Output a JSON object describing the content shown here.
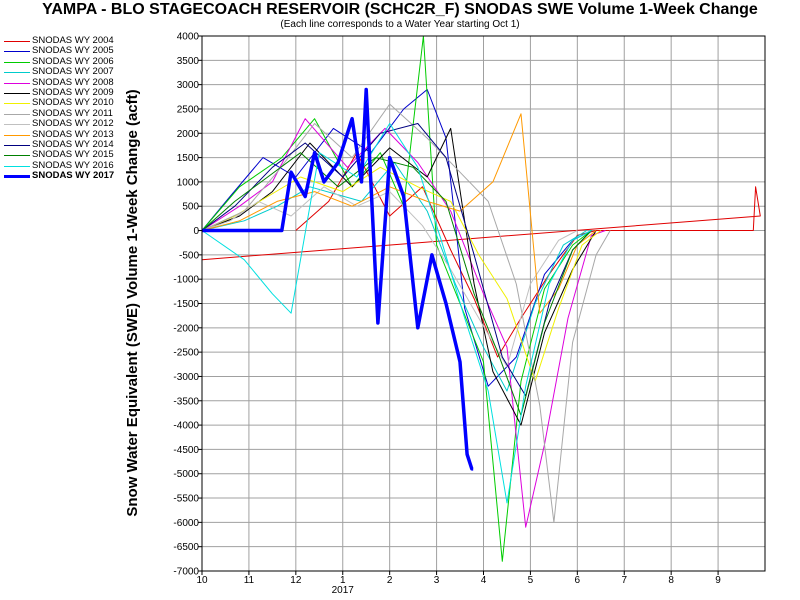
{
  "chart_data": {
    "type": "line",
    "title": "YAMPA - BLO STAGECOACH RESERVOIR (SCHC2R_F) SNODAS SWE Volume 1-Week Change",
    "subtitle": "(Each line corresponds to a Water Year starting Oct 1)",
    "ylabel": "Snow Water Equivalent (SWE) Volume 1-Week Change (acft)",
    "xlabel": "",
    "x_ticks": [
      "10",
      "11",
      "12",
      "1",
      "2",
      "3",
      "4",
      "5",
      "6",
      "7",
      "8",
      "9"
    ],
    "x_year_label": "2017",
    "ylim": [
      -7000,
      4000
    ],
    "y_ticks": [
      4000,
      3500,
      3000,
      2500,
      2000,
      1500,
      1000,
      500,
      0,
      -500,
      -1000,
      -1500,
      -2000,
      -2500,
      -3000,
      -3500,
      -4000,
      -4500,
      -5000,
      -5500,
      -6000,
      -6500,
      -7000
    ],
    "grid": true,
    "legend_placement": "top-left outside",
    "series": [
      {
        "name": "SNODAS WY 2004",
        "color": "#e00000",
        "values": [
          [
            12.0,
            0
          ],
          [
            12.7,
            600
          ],
          [
            1.3,
            1600
          ],
          [
            2.0,
            300
          ],
          [
            2.7,
            900
          ],
          [
            3.3,
            -400
          ],
          [
            3.8,
            -1400
          ],
          [
            4.3,
            -2600
          ],
          [
            4.8,
            -1800
          ],
          [
            5.4,
            -900
          ],
          [
            6.0,
            -100
          ],
          [
            6.4,
            0
          ],
          [
            9.75,
            0
          ],
          [
            9.8,
            900
          ],
          [
            9.9,
            300
          ],
          [
            10.0,
            -600
          ]
        ]
      },
      {
        "name": "SNODAS WY 2005",
        "color": "#0000cc",
        "values": [
          [
            10.0,
            0
          ],
          [
            10.6,
            700
          ],
          [
            11.3,
            1500
          ],
          [
            12.0,
            1100
          ],
          [
            12.8,
            2100
          ],
          [
            1.6,
            1600
          ],
          [
            2.3,
            2500
          ],
          [
            2.8,
            2900
          ],
          [
            3.2,
            1900
          ],
          [
            3.6,
            -1600
          ],
          [
            4.1,
            -3200
          ],
          [
            4.7,
            -2600
          ],
          [
            5.3,
            -900
          ],
          [
            5.9,
            -200
          ],
          [
            6.3,
            0
          ]
        ]
      },
      {
        "name": "SNODAS WY 2006",
        "color": "#00cc00",
        "values": [
          [
            10.0,
            0
          ],
          [
            10.8,
            900
          ],
          [
            11.7,
            1500
          ],
          [
            12.4,
            2300
          ],
          [
            1.2,
            900
          ],
          [
            1.8,
            1600
          ],
          [
            2.3,
            500
          ],
          [
            2.72,
            4000
          ],
          [
            3.0,
            -300
          ],
          [
            3.5,
            -1500
          ],
          [
            4.0,
            -2700
          ],
          [
            4.4,
            -6800
          ],
          [
            4.8,
            -3100
          ],
          [
            5.3,
            -1200
          ],
          [
            5.9,
            -300
          ],
          [
            6.3,
            0
          ]
        ]
      },
      {
        "name": "SNODAS WY 2007",
        "color": "#00cccc",
        "values": [
          [
            10.0,
            0
          ],
          [
            10.9,
            200
          ],
          [
            11.6,
            500
          ],
          [
            12.3,
            900
          ],
          [
            1.4,
            600
          ],
          [
            2.1,
            1400
          ],
          [
            2.8,
            400
          ],
          [
            3.4,
            -1100
          ],
          [
            4.0,
            -2400
          ],
          [
            4.5,
            -3300
          ],
          [
            5.1,
            -1500
          ],
          [
            5.7,
            -300
          ],
          [
            6.2,
            0
          ]
        ]
      },
      {
        "name": "SNODAS WY 2008",
        "color": "#dd00dd",
        "values": [
          [
            10.0,
            0
          ],
          [
            10.8,
            500
          ],
          [
            11.5,
            1000
          ],
          [
            12.2,
            2300
          ],
          [
            1.1,
            1300
          ],
          [
            1.9,
            2100
          ],
          [
            2.6,
            1400
          ],
          [
            3.3,
            400
          ],
          [
            4.0,
            -1300
          ],
          [
            4.5,
            -2400
          ],
          [
            4.9,
            -6100
          ],
          [
            5.3,
            -4400
          ],
          [
            5.8,
            -1800
          ],
          [
            6.3,
            -100
          ],
          [
            6.6,
            0
          ]
        ]
      },
      {
        "name": "SNODAS WY 2009",
        "color": "#000000",
        "values": [
          [
            10.0,
            0
          ],
          [
            10.8,
            300
          ],
          [
            11.5,
            800
          ],
          [
            12.3,
            1800
          ],
          [
            1.2,
            900
          ],
          [
            2.0,
            1700
          ],
          [
            2.8,
            1100
          ],
          [
            3.3,
            2100
          ],
          [
            3.8,
            -1100
          ],
          [
            4.2,
            -2900
          ],
          [
            4.8,
            -4000
          ],
          [
            5.3,
            -2100
          ],
          [
            5.9,
            -800
          ],
          [
            6.4,
            0
          ]
        ]
      },
      {
        "name": "SNODAS WY 2010",
        "color": "#f0f000",
        "values": [
          [
            10.0,
            0
          ],
          [
            10.7,
            300
          ],
          [
            11.4,
            700
          ],
          [
            12.1,
            1100
          ],
          [
            1.0,
            800
          ],
          [
            1.8,
            1300
          ],
          [
            2.6,
            900
          ],
          [
            3.3,
            600
          ],
          [
            3.9,
            -500
          ],
          [
            4.5,
            -1400
          ],
          [
            5.1,
            -3100
          ],
          [
            5.6,
            -1600
          ],
          [
            6.1,
            -300
          ],
          [
            6.5,
            0
          ]
        ]
      },
      {
        "name": "SNODAS WY 2011",
        "color": "#a8a8a8",
        "values": [
          [
            10.0,
            0
          ],
          [
            10.9,
            400
          ],
          [
            11.6,
            1200
          ],
          [
            12.4,
            2200
          ],
          [
            1.2,
            1500
          ],
          [
            2.0,
            2600
          ],
          [
            2.8,
            1900
          ],
          [
            3.5,
            1200
          ],
          [
            4.1,
            600
          ],
          [
            4.7,
            -1100
          ],
          [
            5.2,
            -3600
          ],
          [
            5.5,
            -6000
          ],
          [
            5.9,
            -2300
          ],
          [
            6.4,
            -500
          ],
          [
            6.7,
            0
          ]
        ]
      },
      {
        "name": "SNODAS WY 2012",
        "color": "#c0c0c0",
        "values": [
          [
            10.0,
            0
          ],
          [
            10.6,
            200
          ],
          [
            11.2,
            600
          ],
          [
            11.9,
            300
          ],
          [
            12.6,
            900
          ],
          [
            1.3,
            500
          ],
          [
            2.0,
            800
          ],
          [
            2.7,
            100
          ],
          [
            3.3,
            -800
          ],
          [
            3.9,
            -1800
          ],
          [
            4.5,
            -2800
          ],
          [
            5.0,
            -1100
          ],
          [
            5.6,
            -200
          ],
          [
            6.0,
            0
          ]
        ]
      },
      {
        "name": "SNODAS WY 2013",
        "color": "#ff9900",
        "values": [
          [
            10.0,
            0
          ],
          [
            10.8,
            200
          ],
          [
            11.6,
            600
          ],
          [
            12.4,
            800
          ],
          [
            1.2,
            500
          ],
          [
            2.0,
            900
          ],
          [
            2.8,
            600
          ],
          [
            3.5,
            400
          ],
          [
            4.2,
            1000
          ],
          [
            4.8,
            2400
          ],
          [
            5.2,
            -1700
          ],
          [
            5.6,
            -1200
          ],
          [
            6.0,
            -300
          ],
          [
            6.4,
            0
          ]
        ]
      },
      {
        "name": "SNODAS WY 2014",
        "color": "#000080",
        "values": [
          [
            10.0,
            0
          ],
          [
            10.7,
            500
          ],
          [
            11.5,
            1300
          ],
          [
            12.2,
            1800
          ],
          [
            1.0,
            1100
          ],
          [
            1.8,
            2000
          ],
          [
            2.6,
            2200
          ],
          [
            3.2,
            1500
          ],
          [
            3.8,
            -500
          ],
          [
            4.4,
            -2600
          ],
          [
            4.9,
            -3400
          ],
          [
            5.4,
            -1500
          ],
          [
            5.9,
            -400
          ],
          [
            6.3,
            0
          ]
        ]
      },
      {
        "name": "SNODAS WY 2015",
        "color": "#008000",
        "values": [
          [
            10.0,
            0
          ],
          [
            10.7,
            600
          ],
          [
            11.4,
            1100
          ],
          [
            12.1,
            1600
          ],
          [
            12.9,
            900
          ],
          [
            1.7,
            1500
          ],
          [
            2.5,
            1300
          ],
          [
            3.2,
            600
          ],
          [
            3.8,
            -1300
          ],
          [
            4.3,
            -2500
          ],
          [
            4.8,
            -3800
          ],
          [
            5.3,
            -1900
          ],
          [
            5.9,
            -400
          ],
          [
            6.3,
            0
          ]
        ]
      },
      {
        "name": "SNODAS WY 2016",
        "color": "#00e0e0",
        "values": [
          [
            10.0,
            0
          ],
          [
            10.9,
            -600
          ],
          [
            11.5,
            -1300
          ],
          [
            11.9,
            -1700
          ],
          [
            12.5,
            1600
          ],
          [
            1.3,
            1100
          ],
          [
            2.0,
            2200
          ],
          [
            2.6,
            1300
          ],
          [
            3.1,
            -200
          ],
          [
            3.6,
            -1800
          ],
          [
            4.1,
            -3300
          ],
          [
            4.5,
            -5600
          ],
          [
            4.9,
            -3200
          ],
          [
            5.4,
            -1100
          ],
          [
            5.9,
            -200
          ],
          [
            6.3,
            0
          ]
        ]
      },
      {
        "name": "SNODAS WY 2017",
        "color": "#0000ff",
        "values": [
          [
            10.0,
            0
          ],
          [
            11.4,
            0
          ],
          [
            11.7,
            0
          ],
          [
            11.9,
            1200
          ],
          [
            12.2,
            700
          ],
          [
            12.4,
            1600
          ],
          [
            12.6,
            1000
          ],
          [
            12.9,
            1400
          ],
          [
            1.2,
            2300
          ],
          [
            1.4,
            1000
          ],
          [
            1.5,
            2900
          ],
          [
            1.75,
            -1900
          ],
          [
            2.0,
            1500
          ],
          [
            2.3,
            700
          ],
          [
            2.6,
            -2000
          ],
          [
            2.9,
            -500
          ],
          [
            3.2,
            -1500
          ],
          [
            3.5,
            -2700
          ],
          [
            3.65,
            -4600
          ],
          [
            3.75,
            -4900
          ],
          [
            3.78,
            -4900
          ]
        ]
      }
    ]
  }
}
